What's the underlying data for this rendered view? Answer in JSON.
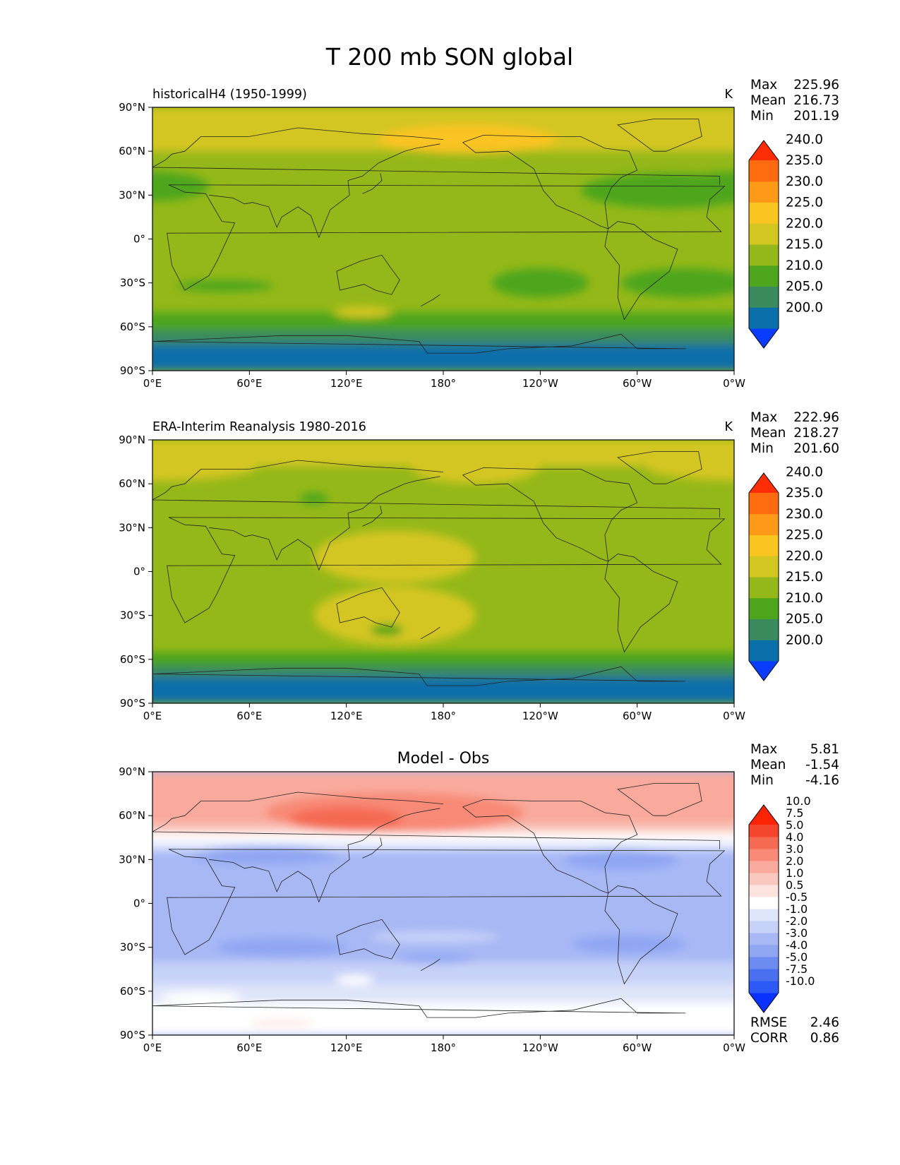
{
  "figure_title": "T 200 mb SON global",
  "chart_data": [
    {
      "type": "heatmap",
      "name": "model",
      "title": "historicalH4 (1950-1999)",
      "units": "K",
      "stats": {
        "Max": "225.96",
        "Mean": "216.73",
        "Min": "201.19"
      },
      "x_ticks": [
        "0°E",
        "60°E",
        "120°E",
        "180°",
        "120°W",
        "60°W",
        "0°W"
      ],
      "y_ticks": [
        "90°N",
        "60°N",
        "30°N",
        "0°",
        "30°S",
        "60°S",
        "90°S"
      ],
      "colorbar": {
        "levels": [
          "200.0",
          "205.0",
          "210.0",
          "215.0",
          "220.0",
          "225.0",
          "230.0",
          "235.0",
          "240.0"
        ],
        "colors": [
          "#0a3cff",
          "#0a6ea9",
          "#3a8a5e",
          "#4ea61e",
          "#94b819",
          "#d4c621",
          "#fac421",
          "#fe9a18",
          "#fe6c0f",
          "#ff2d06"
        ]
      },
      "field": {
        "base": "#94b819",
        "bands": [
          {
            "lat": [
              -90,
              -72
            ],
            "color": "#0a6ea9"
          },
          {
            "lat": [
              -72,
              -62
            ],
            "color": "#3a8a5e"
          },
          {
            "lat": [
              -62,
              -50
            ],
            "color": "#4ea61e"
          },
          {
            "lat": [
              60,
              90
            ],
            "color": "#d4c621"
          }
        ],
        "blobs": [
          {
            "lon": 195,
            "lat": 68,
            "rlon": 55,
            "rlat": 10,
            "color": "#fac421"
          },
          {
            "lon": 0,
            "lat": 36,
            "rlon": 35,
            "rlat": 10,
            "color": "#4ea61e"
          },
          {
            "lon": 320,
            "lat": 33,
            "rlon": 55,
            "rlat": 12,
            "color": "#4ea61e"
          },
          {
            "lon": 240,
            "lat": -30,
            "rlon": 30,
            "rlat": 10,
            "color": "#4ea61e"
          },
          {
            "lon": 330,
            "lat": -30,
            "rlon": 40,
            "rlat": 10,
            "color": "#4ea61e"
          },
          {
            "lon": 45,
            "lat": -32,
            "rlon": 30,
            "rlat": 4,
            "color": "#4ea61e"
          },
          {
            "lon": 130,
            "lat": -50,
            "rlon": 18,
            "rlat": 4,
            "color": "#d4c621"
          }
        ]
      }
    },
    {
      "type": "heatmap",
      "name": "obs",
      "title": "ERA-Interim Reanalysis 1980-2016",
      "units": "K",
      "stats": {
        "Max": "222.96",
        "Mean": "218.27",
        "Min": "201.60"
      },
      "x_ticks": [
        "0°E",
        "60°E",
        "120°E",
        "180°",
        "120°W",
        "60°W",
        "0°W"
      ],
      "y_ticks": [
        "90°N",
        "60°N",
        "30°N",
        "0°",
        "30°S",
        "60°S",
        "90°S"
      ],
      "colorbar": {
        "levels": [
          "200.0",
          "205.0",
          "210.0",
          "215.0",
          "220.0",
          "225.0",
          "230.0",
          "235.0",
          "240.0"
        ],
        "colors": [
          "#0a3cff",
          "#0a6ea9",
          "#3a8a5e",
          "#4ea61e",
          "#94b819",
          "#d4c621",
          "#fac421",
          "#fe9a18",
          "#fe6c0f",
          "#ff2d06"
        ]
      },
      "field": {
        "base": "#94b819",
        "bands": [
          {
            "lat": [
              -90,
              -72
            ],
            "color": "#0a6ea9"
          },
          {
            "lat": [
              -72,
              -64
            ],
            "color": "#3a8a5e"
          },
          {
            "lat": [
              -64,
              -55
            ],
            "color": "#4ea61e"
          },
          {
            "lat": [
              72,
              90
            ],
            "color": "#d4c621"
          }
        ],
        "blobs": [
          {
            "lon": 150,
            "lat": 10,
            "rlon": 50,
            "rlat": 18,
            "color": "#d4c621"
          },
          {
            "lon": 150,
            "lat": -30,
            "rlon": 50,
            "rlat": 20,
            "color": "#d4c621"
          },
          {
            "lon": 200,
            "lat": 72,
            "rlon": 40,
            "rlat": 12,
            "color": "#d4c621"
          },
          {
            "lon": 5,
            "lat": 72,
            "rlon": 60,
            "rlat": 10,
            "color": "#d4c621"
          },
          {
            "lon": 100,
            "lat": 50,
            "rlon": 9,
            "rlat": 4,
            "color": "#4ea61e"
          },
          {
            "lon": 145,
            "lat": -40,
            "rlon": 10,
            "rlat": 4,
            "color": "#4ea61e"
          }
        ]
      }
    },
    {
      "type": "heatmap",
      "name": "difference",
      "title": "Model - Obs",
      "units": "",
      "stats": {
        "Max": "5.81",
        "Mean": "-1.54",
        "Min": "-4.16"
      },
      "metrics": {
        "RMSE": "2.46",
        "CORR": "0.86"
      },
      "x_ticks": [
        "0°E",
        "60°E",
        "120°E",
        "180°",
        "120°W",
        "60°W",
        "0°W"
      ],
      "y_ticks": [
        "90°N",
        "60°N",
        "30°N",
        "0°",
        "30°S",
        "60°S",
        "90°S"
      ],
      "colorbar": {
        "levels": [
          "-10.0",
          "-7.5",
          "-5.0",
          "-4.0",
          "-3.0",
          "-2.0",
          "-1.0",
          "-0.5",
          "0.5",
          "1.0",
          "2.0",
          "3.0",
          "4.0",
          "5.0",
          "7.5",
          "10.0"
        ],
        "colors": [
          "#0a32ff",
          "#2d5af6",
          "#4a70f0",
          "#6b8bf0",
          "#8fa6f3",
          "#a7b8f5",
          "#c7d2f8",
          "#dfe5fa",
          "#ffffff",
          "#fde3df",
          "#fbc8c0",
          "#f9aa9c",
          "#f88a77",
          "#f56a52",
          "#f5452c",
          "#fa2405"
        ]
      },
      "field": {
        "base": "#a7b8f5",
        "bands": [
          {
            "lat": [
              -90,
              -68
            ],
            "color": "#ffffff"
          },
          {
            "lat": [
              -68,
              -55
            ],
            "color": "#dfe5fa"
          },
          {
            "lat": [
              -55,
              -40
            ],
            "color": "#c7d2f8"
          },
          {
            "lat": [
              36,
              42
            ],
            "color": "#dfe5fa"
          },
          {
            "lat": [
              42,
              48
            ],
            "color": "#ffffff"
          },
          {
            "lat": [
              48,
              54
            ],
            "color": "#fbc8c0"
          },
          {
            "lat": [
              54,
              90
            ],
            "color": "#f9aa9c"
          }
        ],
        "blobs": [
          {
            "lon": 150,
            "lat": 62,
            "rlon": 80,
            "rlat": 14,
            "color": "#f88a77"
          },
          {
            "lon": 120,
            "lat": 58,
            "rlon": 35,
            "rlat": 8,
            "color": "#f56a52"
          },
          {
            "lon": 70,
            "lat": 33,
            "rlon": 45,
            "rlat": 6,
            "color": "#8fa6f3"
          },
          {
            "lon": 290,
            "lat": 30,
            "rlon": 35,
            "rlat": 7,
            "color": "#8fa6f3"
          },
          {
            "lon": 80,
            "lat": -30,
            "rlon": 40,
            "rlat": 6,
            "color": "#8fa6f3"
          },
          {
            "lon": 295,
            "lat": -28,
            "rlon": 35,
            "rlat": 6,
            "color": "#8fa6f3"
          },
          {
            "lon": 175,
            "lat": -38,
            "rlon": 25,
            "rlat": 3,
            "color": "#8fa6f3"
          },
          {
            "lon": 175,
            "lat": -23,
            "rlon": 40,
            "rlat": 4,
            "color": "#c7d2f8"
          },
          {
            "lon": 125,
            "lat": -52,
            "rlon": 12,
            "rlat": 3,
            "color": "#ffffff"
          },
          {
            "lon": 30,
            "lat": -64,
            "rlon": 25,
            "rlat": 4,
            "color": "#ffffff"
          },
          {
            "lon": 80,
            "lat": -82,
            "rlon": 20,
            "rlat": 2,
            "color": "#fde3df"
          }
        ]
      }
    }
  ]
}
